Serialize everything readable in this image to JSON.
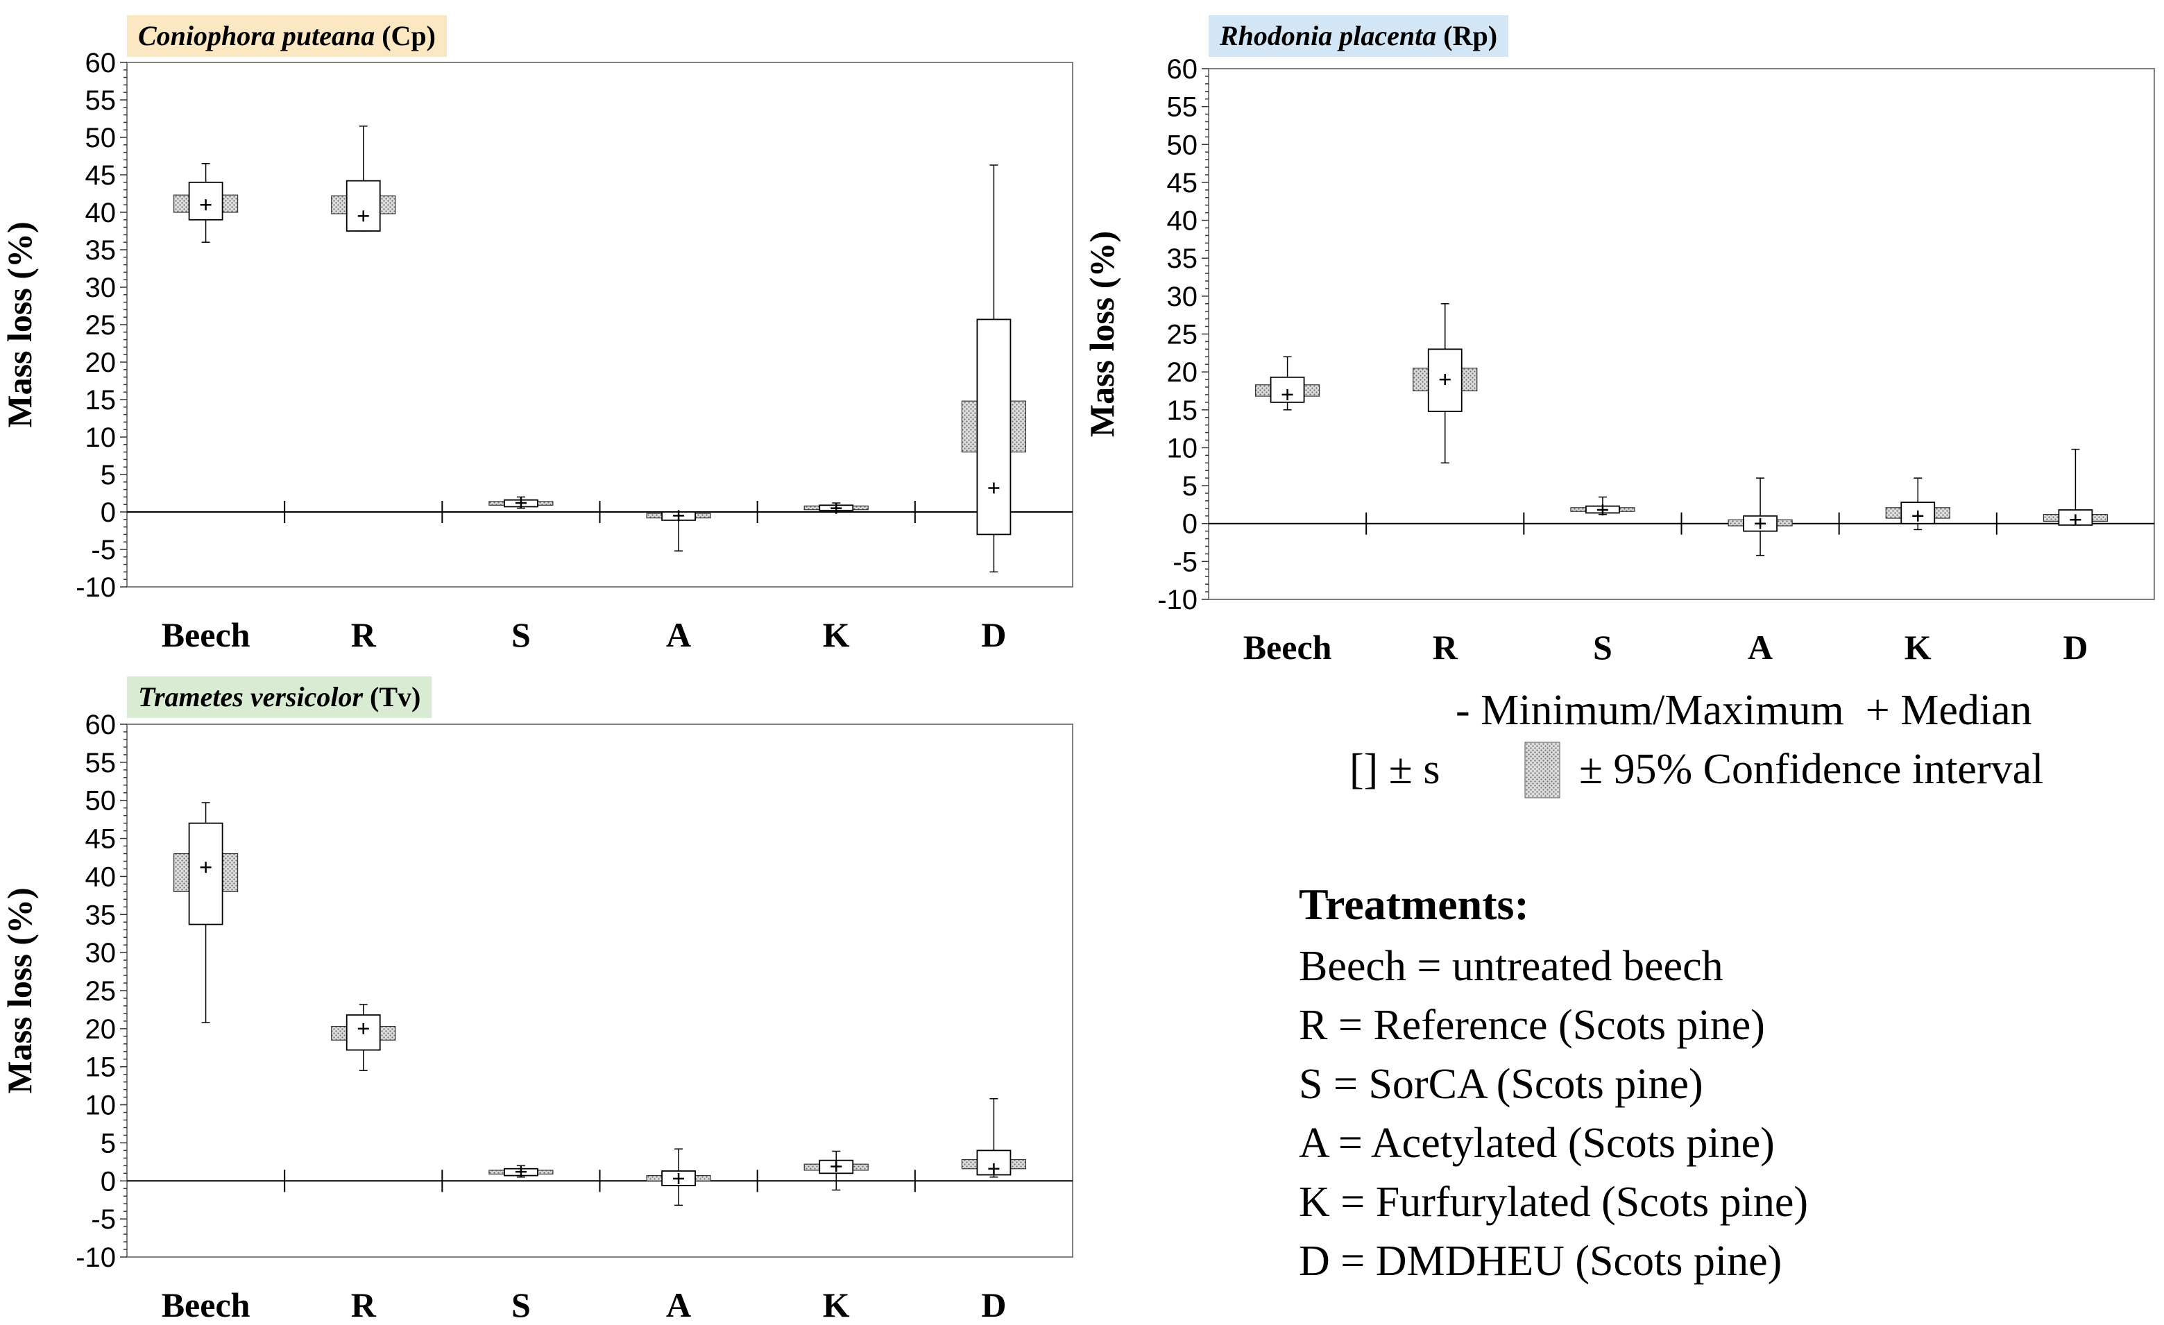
{
  "colors": {
    "cp_title_bg": "#fbe8c2",
    "rp_title_bg": "#d3e6f6",
    "tv_title_bg": "#d9ecd3",
    "ci_fill": "#bdbdbd",
    "frame": "#808080"
  },
  "chart_data": [
    {
      "type": "box",
      "id": "cp",
      "title": {
        "species": "Coniophora puteana",
        "abbr": "(Cp)"
      },
      "ylabel": "Mass loss (%)",
      "ylim": [
        -10,
        60
      ],
      "yticks": [
        "60",
        "55",
        "50",
        "45",
        "40",
        "35",
        "30",
        "25",
        "20",
        "15",
        "10",
        "5",
        "0",
        "-5",
        "-10"
      ],
      "categories": [
        "Beech",
        "R",
        "S",
        "A",
        "K",
        "D"
      ],
      "boxes": [
        {
          "min": 36,
          "max": 46.5,
          "sd_low": 39,
          "sd_high": 44,
          "ci_low": 40,
          "ci_high": 42.3,
          "median": 41
        },
        {
          "min": 37.5,
          "max": 51.5,
          "sd_low": 37.5,
          "sd_high": 44.2,
          "ci_low": 39.8,
          "ci_high": 42.2,
          "median": 39.5
        },
        {
          "min": 0.5,
          "max": 2,
          "sd_low": 0.7,
          "sd_high": 1.6,
          "ci_low": 0.9,
          "ci_high": 1.4,
          "median": 1.2
        },
        {
          "min": -5.2,
          "max": 0,
          "sd_low": -1.1,
          "sd_high": 0,
          "ci_low": -0.8,
          "ci_high": -0.2,
          "median": -0.5
        },
        {
          "min": 0,
          "max": 1.2,
          "sd_low": 0.2,
          "sd_high": 0.9,
          "ci_low": 0.3,
          "ci_high": 0.8,
          "median": 0.5
        },
        {
          "min": -8,
          "max": 46.3,
          "sd_low": -3,
          "sd_high": 25.7,
          "ci_low": 8,
          "ci_high": 14.8,
          "median": 3.2
        }
      ]
    },
    {
      "type": "box",
      "id": "rp",
      "title": {
        "species": "Rhodonia placenta",
        "abbr": "(Rp)"
      },
      "ylabel": "Mass loss (%)",
      "ylim": [
        -10,
        60
      ],
      "yticks": [
        "60",
        "55",
        "50",
        "45",
        "40",
        "35",
        "30",
        "25",
        "20",
        "15",
        "10",
        "5",
        "0",
        "-5",
        "-10"
      ],
      "categories": [
        "Beech",
        "R",
        "S",
        "A",
        "K",
        "D"
      ],
      "boxes": [
        {
          "min": 15,
          "max": 22,
          "sd_low": 16,
          "sd_high": 19.3,
          "ci_low": 16.8,
          "ci_high": 18.3,
          "median": 17
        },
        {
          "min": 8,
          "max": 29,
          "sd_low": 14.8,
          "sd_high": 23,
          "ci_low": 17.5,
          "ci_high": 20.5,
          "median": 19
        },
        {
          "min": 1.2,
          "max": 3.5,
          "sd_low": 1.4,
          "sd_high": 2.3,
          "ci_low": 1.6,
          "ci_high": 2.1,
          "median": 1.8
        },
        {
          "min": -4.2,
          "max": 6,
          "sd_low": -1,
          "sd_high": 1,
          "ci_low": -0.3,
          "ci_high": 0.5,
          "median": 0
        },
        {
          "min": -0.8,
          "max": 6,
          "sd_low": 0,
          "sd_high": 2.8,
          "ci_low": 0.7,
          "ci_high": 2.1,
          "median": 1
        },
        {
          "min": -0.2,
          "max": 9.8,
          "sd_low": -0.2,
          "sd_high": 1.8,
          "ci_low": 0.3,
          "ci_high": 1.2,
          "median": 0.5
        }
      ]
    },
    {
      "type": "box",
      "id": "tv",
      "title": {
        "species": "Trametes versicolor",
        "abbr": "(Tv)"
      },
      "ylabel": "Mass loss (%)",
      "ylim": [
        -10,
        60
      ],
      "yticks": [
        "60",
        "55",
        "50",
        "45",
        "40",
        "35",
        "30",
        "25",
        "20",
        "15",
        "10",
        "5",
        "0",
        "-5",
        "-10"
      ],
      "categories": [
        "Beech",
        "R",
        "S",
        "A",
        "K",
        "D"
      ],
      "boxes": [
        {
          "min": 20.8,
          "max": 49.7,
          "sd_low": 33.7,
          "sd_high": 47,
          "ci_low": 38,
          "ci_high": 43,
          "median": 41.2
        },
        {
          "min": 14.5,
          "max": 23.2,
          "sd_low": 17.2,
          "sd_high": 21.8,
          "ci_low": 18.5,
          "ci_high": 20.3,
          "median": 20
        },
        {
          "min": 0.5,
          "max": 2,
          "sd_low": 0.7,
          "sd_high": 1.6,
          "ci_low": 0.9,
          "ci_high": 1.4,
          "median": 1.2
        },
        {
          "min": -3.2,
          "max": 4.2,
          "sd_low": -0.6,
          "sd_high": 1.3,
          "ci_low": 0,
          "ci_high": 0.7,
          "median": 0.3
        },
        {
          "min": -1.2,
          "max": 3.9,
          "sd_low": 1,
          "sd_high": 2.7,
          "ci_low": 1.4,
          "ci_high": 2.2,
          "median": 1.9
        },
        {
          "min": 0.5,
          "max": 10.8,
          "sd_low": 0.8,
          "sd_high": 4,
          "ci_low": 1.6,
          "ci_high": 2.8,
          "median": 1.6
        }
      ]
    }
  ],
  "legend": {
    "minmax": "- Minimum/Maximum",
    "median": "+ Median",
    "sd": "[] ± s",
    "ci": "± 95% Confidence interval"
  },
  "treatments": {
    "heading": "Treatments:",
    "items": [
      "Beech = untreated beech",
      "R = Reference (Scots pine)",
      "S = SorCA (Scots pine)",
      "A = Acetylated (Scots pine)",
      "K = Furfurylated (Scots pine)",
      "D = DMDHEU (Scots pine)"
    ]
  }
}
